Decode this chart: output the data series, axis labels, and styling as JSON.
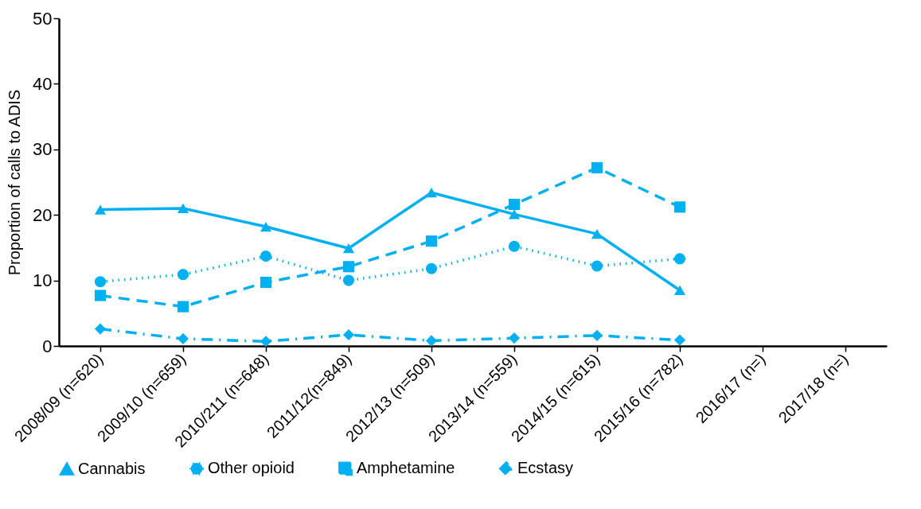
{
  "chart_data": {
    "type": "line",
    "ylabel": "Proportion of calls to ADIS",
    "categories": [
      "2008/09 (n=620)",
      "2009/10 (n=659)",
      "2010/211 (n=648)",
      "2011/12(n=849)",
      "2012/13 (n=509)",
      "2013/14 (n=559)",
      "2014/15 (n=615)",
      "2015/16 (n=782)",
      "2016/17 (n=)",
      "2017/18 (n=)"
    ],
    "series": [
      {
        "name": "Cannabis",
        "color": "#00b0f0",
        "marker": "triangle",
        "line_style": "solid",
        "values": [
          20.8,
          21.0,
          18.2,
          14.9,
          23.4,
          20.1,
          17.1,
          8.5,
          null,
          null
        ]
      },
      {
        "name": "Other opioid",
        "color": "#00b0f0",
        "marker": "circle",
        "line_style": "dotted",
        "values": [
          9.8,
          10.9,
          13.7,
          10.0,
          11.8,
          15.2,
          12.2,
          13.3,
          null,
          null
        ]
      },
      {
        "name": "Amphetamine",
        "color": "#00b0f0",
        "marker": "square",
        "line_style": "dashed",
        "values": [
          7.7,
          6.0,
          9.7,
          12.1,
          16.0,
          21.6,
          27.2,
          21.2,
          null,
          null
        ]
      },
      {
        "name": "Ecstasy",
        "color": "#00b0f0",
        "marker": "diamond",
        "line_style": "dashdot",
        "values": [
          2.6,
          1.1,
          0.7,
          1.7,
          0.8,
          1.2,
          1.6,
          0.9,
          null,
          null
        ]
      }
    ],
    "ylim": [
      0,
      50
    ],
    "yticks": [
      0,
      10,
      20,
      30,
      40,
      50
    ],
    "grid": false,
    "legend": "bottom"
  }
}
